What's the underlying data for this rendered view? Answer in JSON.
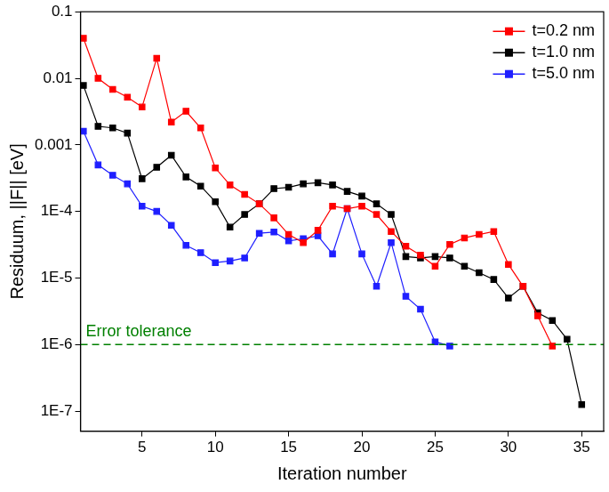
{
  "chart_data": {
    "type": "line",
    "x_label": "Iteration number",
    "y_label": "Residuum, ||F|| [eV]",
    "log": "y",
    "grid": false,
    "legend": "upper right",
    "x": [
      1,
      2,
      3,
      4,
      5,
      6,
      7,
      8,
      9,
      10,
      11,
      12,
      13,
      14,
      15,
      16,
      17,
      18,
      19,
      20,
      21,
      22,
      23,
      24,
      25,
      26,
      27,
      28,
      29,
      30,
      31,
      32,
      33,
      34,
      35
    ],
    "xlim": [
      0.8,
      36.5
    ],
    "xticks": [
      5,
      10,
      15,
      20,
      25,
      30,
      35
    ],
    "ylim": [
      5e-08,
      0.1
    ],
    "yticks": [
      {
        "value": 1e-07,
        "label": "1E-7"
      },
      {
        "value": 1e-06,
        "label": "1E-6"
      },
      {
        "value": 1e-05,
        "label": "1E-5"
      },
      {
        "value": 0.0001,
        "label": "1E-4"
      },
      0.001,
      0.01,
      0.1
    ],
    "series": [
      {
        "name": "t=0.2 nm",
        "color": "#ff0000",
        "marker": "square",
        "line_style": "solid",
        "values": [
          0.04,
          0.01,
          0.0068,
          0.0052,
          0.0037,
          0.02,
          0.0022,
          0.0032,
          0.0018,
          0.00045,
          0.00025,
          0.00018,
          0.00013,
          8e-05,
          4.5e-05,
          3.4e-05,
          5.2e-05,
          0.00012,
          0.00011,
          0.00012,
          9e-05,
          5e-05,
          3e-05,
          2.2e-05,
          1.5e-05,
          3.2e-05,
          4e-05,
          4.5e-05,
          5e-05,
          1.6e-05,
          7.5e-06,
          2.7e-06,
          9.5e-07,
          null,
          null
        ]
      },
      {
        "name": "t=1.0 nm",
        "color": "#000000",
        "marker": "square",
        "line_style": "solid",
        "values": [
          0.0078,
          0.0019,
          0.0018,
          0.0015,
          0.00031,
          0.00046,
          0.0007,
          0.00033,
          0.00024,
          0.00014,
          5.8e-05,
          9e-05,
          0.00013,
          0.00022,
          0.00023,
          0.00026,
          0.00027,
          0.00025,
          0.0002,
          0.00017,
          0.00013,
          9e-05,
          2.1e-05,
          2e-05,
          2.1e-05,
          2e-05,
          1.5e-05,
          1.2e-05,
          9.5e-06,
          5e-06,
          7.5e-06,
          3e-06,
          2.3e-06,
          1.2e-06,
          1.25e-07
        ]
      },
      {
        "name": "t=5.0 nm",
        "color": "#1f1fff",
        "marker": "square",
        "line_style": "solid",
        "values": [
          0.0016,
          0.0005,
          0.00035,
          0.00026,
          0.00012,
          0.0001,
          6.2e-05,
          3.1e-05,
          2.4e-05,
          1.7e-05,
          1.8e-05,
          2e-05,
          4.7e-05,
          4.9e-05,
          3.6e-05,
          3.9e-05,
          4.3e-05,
          2.3e-05,
          0.00011,
          2.3e-05,
          7.5e-06,
          3.4e-05,
          5.3e-06,
          3.4e-06,
          1.1e-06,
          9.5e-07,
          null,
          null,
          null,
          null,
          null,
          null,
          null,
          null,
          null
        ]
      }
    ],
    "annotations": [
      {
        "text": "Error tolerance",
        "y": 1e-06,
        "color": "#008000",
        "line_style": "dashed"
      }
    ]
  }
}
